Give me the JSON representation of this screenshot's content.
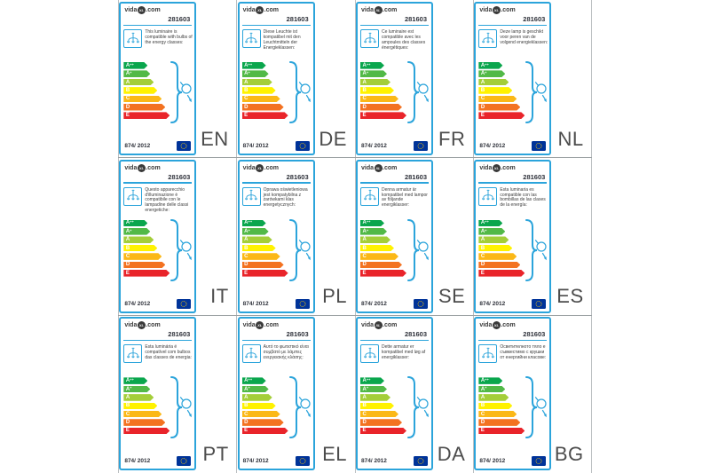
{
  "meta": {
    "title": "vidaXL EU energy efficiency labels in 12 languages"
  },
  "grid": {
    "separator_color_vertical": "#bcc0c2",
    "separator_color_horizontal": "#9ba1a3"
  },
  "label_common": {
    "brand": "vida",
    "brand_badge": "XL",
    "brand_suffix": ".com",
    "product_number": "281603",
    "regulation": "874/ 2012",
    "accent_color": "#2BA4DB",
    "icons": {
      "luminaire": "chandelier-icon",
      "bulb": "light-bulb-icon",
      "brace": "curly-brace",
      "flag": "eu-flag-icon"
    },
    "energy_classes": [
      {
        "grade": "A",
        "sup": "++",
        "color": "#0AA64D"
      },
      {
        "grade": "A",
        "sup": "+",
        "color": "#52B947"
      },
      {
        "grade": "A",
        "sup": "",
        "color": "#A4CE39"
      },
      {
        "grade": "B",
        "sup": "",
        "color": "#FFF200"
      },
      {
        "grade": "C",
        "sup": "",
        "color": "#FBB817"
      },
      {
        "grade": "D",
        "sup": "",
        "color": "#F37221"
      },
      {
        "grade": "E",
        "sup": "",
        "color": "#E9242A"
      }
    ]
  },
  "labels": [
    {
      "code": "EN",
      "description": "This luminaire is compatible with bulbs of the energy classes:"
    },
    {
      "code": "DE",
      "description": "Diese Leuchte ist kompatibel mit den Leuchtmitteln der Energieklassen:"
    },
    {
      "code": "FR",
      "description": "Ce luminaire est compatible avec les ampoules des classes énergétiques:"
    },
    {
      "code": "NL",
      "description": "Deze lamp is geschikt voor peren van de volgend energieklassen:"
    },
    {
      "code": "IT",
      "description": "Questo apparecchio d'illuminazione è compatibile con le lampadine delle classi energetiche:"
    },
    {
      "code": "PL",
      "description": "Oprawa oświetleniowa jest kompatybilna z żarówkami klas energetycznych:"
    },
    {
      "code": "SE",
      "description": "Denna armatur är kompatibel med lampor av följande energiklasser:"
    },
    {
      "code": "ES",
      "description": "Esta luminaria es compatible con las bombillas de las clases de la energía:"
    },
    {
      "code": "PT",
      "description": "Esta luminária é compatível com bulbos das classes de energia:"
    },
    {
      "code": "EL",
      "description": "Αυτό το φωτιστικό είναι συμβατό με λάμπες ενεργειακής κλάσης:"
    },
    {
      "code": "DA",
      "description": "Dette armatur er kompatibel med løg af energiklasser:"
    },
    {
      "code": "BG",
      "description": "Осветителното тяло е съвместимо с крушки от енергийни класове:"
    }
  ]
}
